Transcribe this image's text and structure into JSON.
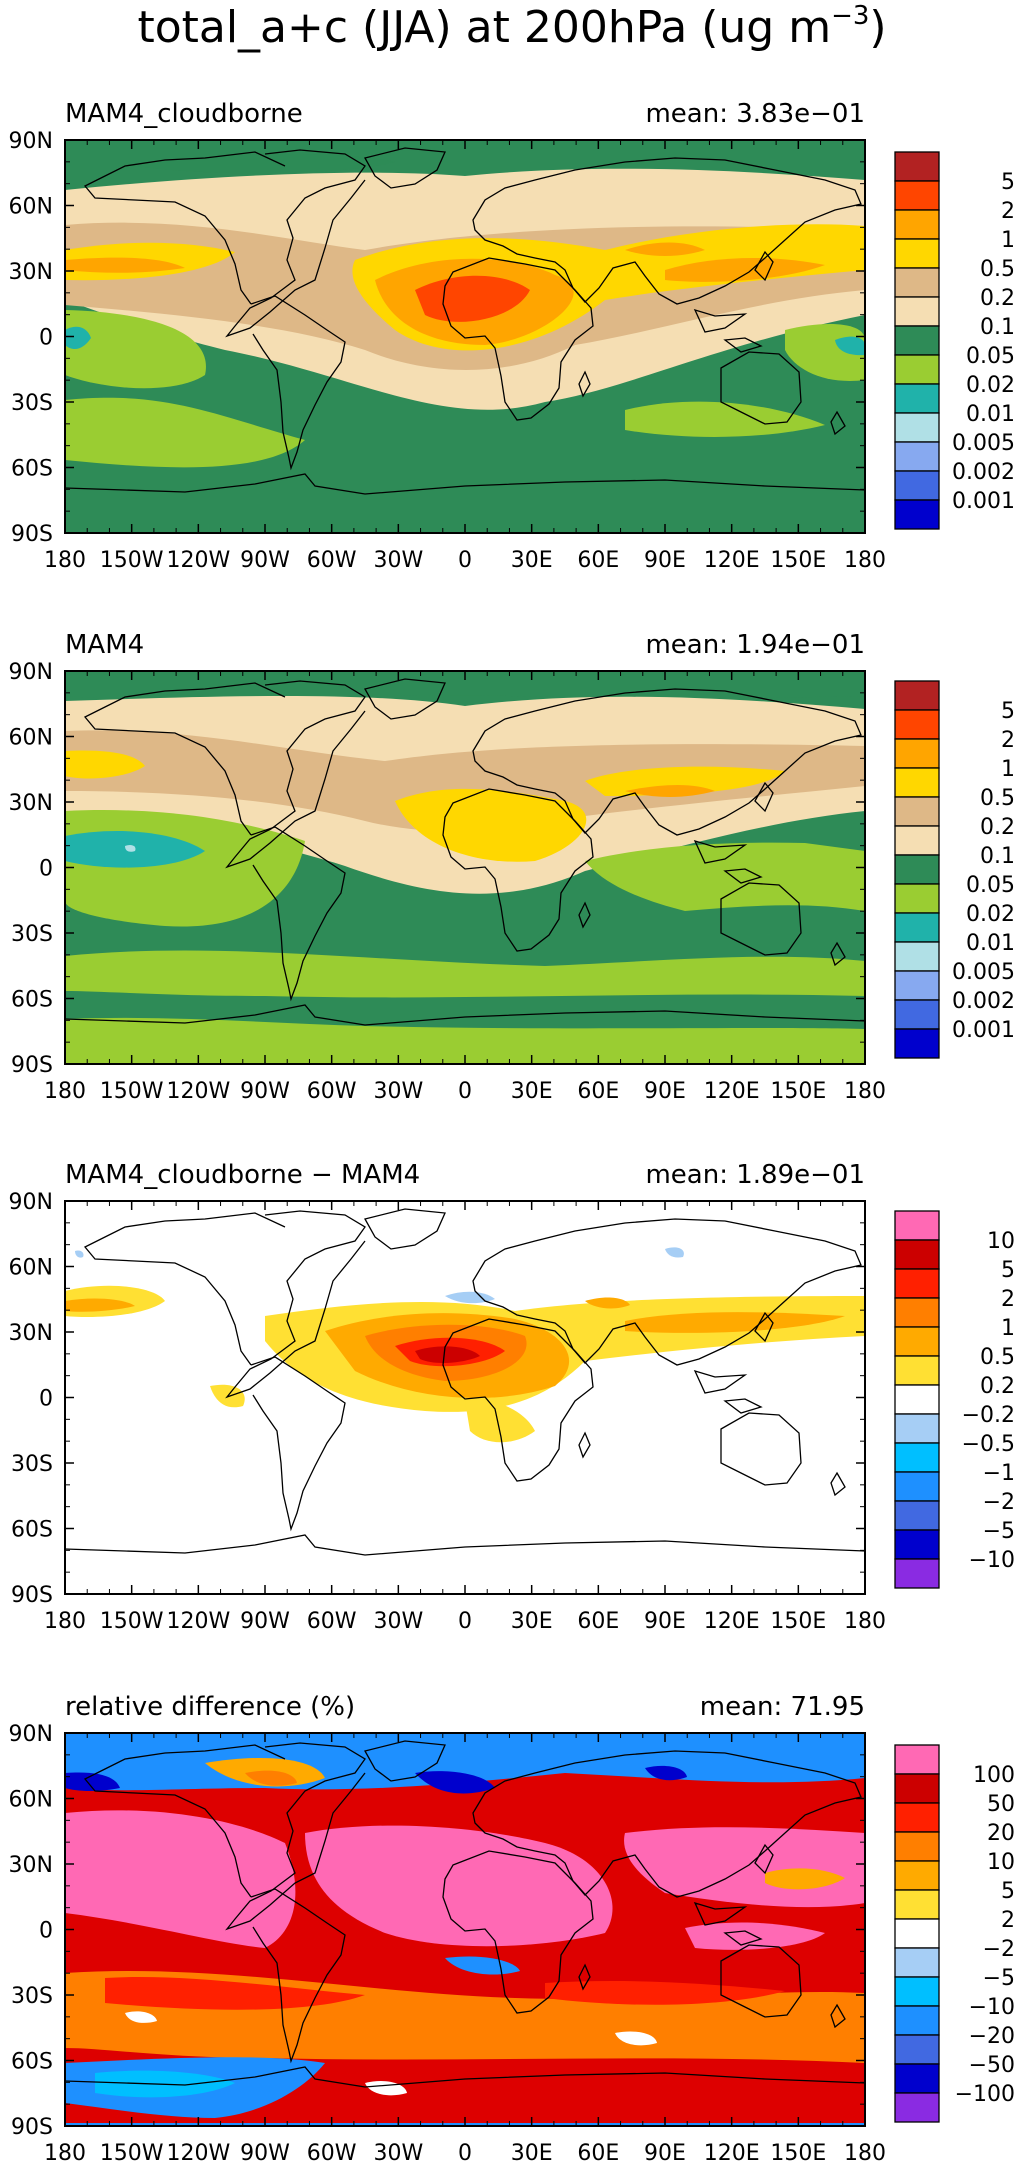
{
  "figure": {
    "title_prefix": "total_a+c (JJA) at 200hPa (ug m",
    "title_exponent": "−3",
    "title_suffix": ")"
  },
  "lon_labels": [
    "180",
    "150W",
    "120W",
    "90W",
    "60W",
    "30W",
    "0",
    "30E",
    "60E",
    "90E",
    "120E",
    "150E",
    "180"
  ],
  "lat_labels": [
    "90N",
    "60N",
    "30N",
    "0",
    "30S",
    "60S",
    "90S"
  ],
  "panels": [
    {
      "label": "MAM4_cloudborne",
      "mean": "mean: 3.83e−01",
      "background": "#2e8b57",
      "colorbar": {
        "colors": [
          "#b22222",
          "#ff4500",
          "#ffa500",
          "#ffd700",
          "#deb887",
          "#f5deb3",
          "#2e8b57",
          "#9acd32",
          "#20b2aa",
          "#b0e0e6",
          "#87a9f0",
          "#4169e1",
          "#0000cd"
        ],
        "labels": [
          "5",
          "2",
          "1",
          "0.5",
          "0.2",
          "0.1",
          "0.05",
          "0.02",
          "0.01",
          "0.005",
          "0.002",
          "0.001"
        ]
      }
    },
    {
      "label": "MAM4",
      "mean": "mean: 1.94e−01",
      "background": "#2e8b57",
      "colorbar": {
        "colors": [
          "#b22222",
          "#ff4500",
          "#ffa500",
          "#ffd700",
          "#deb887",
          "#f5deb3",
          "#2e8b57",
          "#9acd32",
          "#20b2aa",
          "#b0e0e6",
          "#87a9f0",
          "#4169e1",
          "#0000cd"
        ],
        "labels": [
          "5",
          "2",
          "1",
          "0.5",
          "0.2",
          "0.1",
          "0.05",
          "0.02",
          "0.01",
          "0.005",
          "0.002",
          "0.001"
        ]
      }
    },
    {
      "label": "MAM4_cloudborne − MAM4",
      "mean": "mean: 1.89e−01",
      "background": "#ffffff",
      "colorbar": {
        "colors": [
          "#ff69b4",
          "#cc0000",
          "#ff2000",
          "#ff7f00",
          "#ffaa00",
          "#ffe033",
          "#ffffff",
          "#a6cef5",
          "#00bfff",
          "#1e90ff",
          "#4169e1",
          "#0000cd",
          "#8a2be2"
        ],
        "labels": [
          "10",
          "5",
          "2",
          "1",
          "0.5",
          "0.2",
          "−0.2",
          "−0.5",
          "−1",
          "−2",
          "−5",
          "−10"
        ]
      }
    },
    {
      "label": "relative difference (%)",
      "mean": "mean: 71.95",
      "background": "#dd0000",
      "colorbar": {
        "colors": [
          "#ff69b4",
          "#cc0000",
          "#ff2000",
          "#ff7f00",
          "#ffaa00",
          "#ffe033",
          "#ffffff",
          "#a6cef5",
          "#00bfff",
          "#1e90ff",
          "#4169e1",
          "#0000cd",
          "#8a2be2"
        ],
        "labels": [
          "100",
          "50",
          "20",
          "10",
          "5",
          "2",
          "−2",
          "−5",
          "−10",
          "−20",
          "−50",
          "−100"
        ]
      }
    }
  ]
}
